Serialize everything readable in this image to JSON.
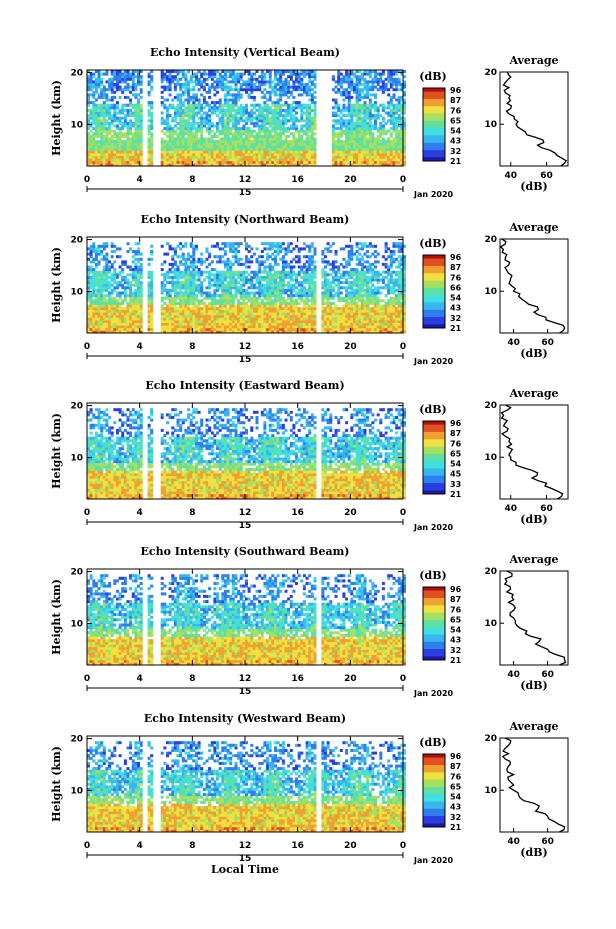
{
  "chart_data": [
    {
      "type": "heatmap",
      "title": "Echo Intensity (Vertical Beam)",
      "ylabel": "Height (km)",
      "xticks": [
        "0",
        "4",
        "8",
        "12",
        "16",
        "20",
        "0"
      ],
      "yticks": [
        "10",
        "20"
      ],
      "day_label": "15",
      "date_label": "Jan 2020",
      "colorbar": {
        "title": "(dB)",
        "labels": [
          "96",
          "87",
          "76",
          "65",
          "54",
          "43",
          "32",
          "21"
        ]
      },
      "data_gaps_hours": [
        [
          4.3,
          4.65
        ],
        [
          5.1,
          5.55
        ],
        [
          17.4,
          18.5
        ]
      ],
      "profile": {
        "title": "Average",
        "xlabel": "(dB)",
        "xticks": [
          "40",
          "60"
        ],
        "yticks": [
          "10",
          "20"
        ],
        "xlim": [
          34,
          72
        ],
        "ylim": [
          2,
          20
        ],
        "height_km": [
          2,
          3,
          4,
          5,
          6,
          7,
          8,
          9,
          10,
          11,
          12,
          13,
          14,
          15,
          16,
          17,
          18,
          19,
          20
        ],
        "db": [
          68,
          71,
          66,
          62,
          55,
          58,
          49,
          46,
          43,
          42,
          39,
          40,
          38,
          39,
          37,
          39,
          37,
          40,
          38
        ]
      }
    },
    {
      "type": "heatmap",
      "title": "Echo Intensity (Northward Beam)",
      "ylabel": "Height (km)",
      "xticks": [
        "0",
        "4",
        "8",
        "12",
        "16",
        "20",
        "0"
      ],
      "yticks": [
        "10",
        "20"
      ],
      "day_label": "15",
      "date_label": "Jan 2020",
      "colorbar": {
        "title": "(dB)",
        "labels": [
          "96",
          "87",
          "76",
          "66",
          "54",
          "43",
          "32",
          "21"
        ]
      },
      "data_gaps_hours": [
        [
          4.3,
          4.65
        ],
        [
          5.1,
          5.55
        ],
        [
          17.4,
          17.75
        ]
      ],
      "profile": {
        "title": "Average",
        "xlabel": "(dB)",
        "xticks": [
          "40",
          "60"
        ],
        "yticks": [
          "10",
          "20"
        ],
        "xlim": [
          32,
          72
        ],
        "ylim": [
          2,
          20
        ],
        "height_km": [
          2,
          3,
          4,
          5,
          6,
          7,
          8,
          9,
          10,
          11,
          12,
          13,
          14,
          15,
          16,
          17,
          18,
          19,
          20
        ],
        "db": [
          67,
          70,
          64,
          59,
          52,
          54,
          47,
          43,
          40,
          39,
          38,
          39,
          36,
          37,
          35,
          36,
          34,
          35,
          33
        ]
      }
    },
    {
      "type": "heatmap",
      "title": "Echo Intensity (Eastward Beam)",
      "ylabel": "Height (km)",
      "xticks": [
        "0",
        "4",
        "8",
        "12",
        "16",
        "20",
        "0"
      ],
      "yticks": [
        "10",
        "20"
      ],
      "day_label": "15",
      "date_label": "Jan 2020",
      "colorbar": {
        "title": "(dB)",
        "labels": [
          "96",
          "87",
          "76",
          "65",
          "54",
          "45",
          "33",
          "21"
        ]
      },
      "data_gaps_hours": [
        [
          4.3,
          4.65
        ],
        [
          5.1,
          5.55
        ],
        [
          17.4,
          17.75
        ]
      ],
      "profile": {
        "title": "Average",
        "xlabel": "(dB)",
        "xticks": [
          "40",
          "60"
        ],
        "yticks": [
          "10",
          "20"
        ],
        "xlim": [
          34,
          72
        ],
        "ylim": [
          2,
          20
        ],
        "height_km": [
          2,
          3,
          4,
          5,
          6,
          7,
          8,
          9,
          10,
          11,
          12,
          13,
          14,
          15,
          16,
          17,
          18,
          19,
          20
        ],
        "db": [
          66,
          69,
          63,
          60,
          52,
          55,
          47,
          43,
          40,
          40,
          38,
          39,
          37,
          38,
          36,
          38,
          36,
          38,
          37
        ]
      }
    },
    {
      "type": "heatmap",
      "title": "Echo Intensity (Southward Beam)",
      "ylabel": "Height (km)",
      "xticks": [
        "0",
        "4",
        "8",
        "12",
        "16",
        "20",
        "0"
      ],
      "yticks": [
        "10",
        "20"
      ],
      "day_label": "15",
      "date_label": "Jan 2020",
      "colorbar": {
        "title": "(dB)",
        "labels": [
          "96",
          "87",
          "76",
          "65",
          "54",
          "43",
          "32",
          "21"
        ]
      },
      "data_gaps_hours": [
        [
          4.3,
          4.65
        ],
        [
          5.1,
          5.55
        ],
        [
          17.4,
          17.75
        ]
      ],
      "profile": {
        "title": "Average",
        "xlabel": "(dB)",
        "xticks": [
          "40",
          "60"
        ],
        "yticks": [
          "10",
          "20"
        ],
        "xlim": [
          32,
          72
        ],
        "ylim": [
          2,
          20
        ],
        "height_km": [
          2,
          3,
          4,
          5,
          6,
          7,
          8,
          9,
          10,
          11,
          12,
          13,
          14,
          15,
          16,
          17,
          18,
          19,
          20
        ],
        "db": [
          67,
          70,
          65,
          60,
          53,
          56,
          47,
          44,
          41,
          40,
          38,
          41,
          37,
          39,
          36,
          38,
          36,
          39,
          36
        ]
      }
    },
    {
      "type": "heatmap",
      "title": "Echo Intensity (Westward Beam)",
      "ylabel": "Height (km)",
      "xticks": [
        "0",
        "4",
        "8",
        "12",
        "16",
        "20",
        "0"
      ],
      "yticks": [
        "10",
        "20"
      ],
      "day_label": "15",
      "date_label": "Jan 2020",
      "xlabel": "Local Time",
      "colorbar": {
        "title": "(dB)",
        "labels": [
          "96",
          "87",
          "76",
          "65",
          "54",
          "43",
          "32",
          "21"
        ]
      },
      "data_gaps_hours": [
        [
          4.3,
          4.65
        ],
        [
          5.1,
          5.55
        ],
        [
          17.4,
          17.75
        ]
      ],
      "profile": {
        "title": "Average",
        "xlabel": "(dB)",
        "xticks": [
          "40",
          "60"
        ],
        "yticks": [
          "10",
          "20"
        ],
        "xlim": [
          32,
          72
        ],
        "ylim": [
          2,
          20
        ],
        "height_km": [
          2,
          3,
          4,
          5,
          6,
          7,
          8,
          9,
          10,
          11,
          12,
          13,
          14,
          15,
          16,
          17,
          18,
          19,
          20
        ],
        "db": [
          67,
          70,
          64,
          60,
          53,
          55,
          46,
          43,
          40,
          40,
          37,
          40,
          36,
          38,
          35,
          37,
          35,
          38,
          35
        ]
      }
    }
  ],
  "colormap": [
    "#1a1aa6",
    "#2b3fe0",
    "#2f7ef0",
    "#38b6f0",
    "#40e0e0",
    "#5fe0a0",
    "#a6e060",
    "#f0e040",
    "#f0a030",
    "#e05020",
    "#b01010"
  ]
}
